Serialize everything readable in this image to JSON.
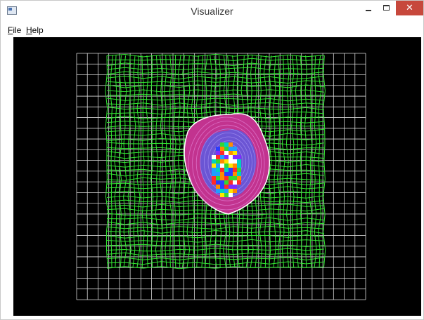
{
  "window": {
    "title": "Visualizer",
    "close_glyph": "✕",
    "icons": [
      "app-icon",
      "minimize-icon",
      "maximize-icon",
      "close-icon"
    ]
  },
  "menu": {
    "file": {
      "accel": "F",
      "rest": "ile"
    },
    "help": {
      "accel": "H",
      "rest": "elp"
    }
  },
  "colors": {
    "canvas_background": "#000000",
    "outer_grid": "#d8d8d8",
    "mesh": "#33e633",
    "outer_band": "#c2338f",
    "inner_band": "#6b55d4",
    "core_contour": "#ffffff",
    "close_button": "#c7483c"
  }
}
